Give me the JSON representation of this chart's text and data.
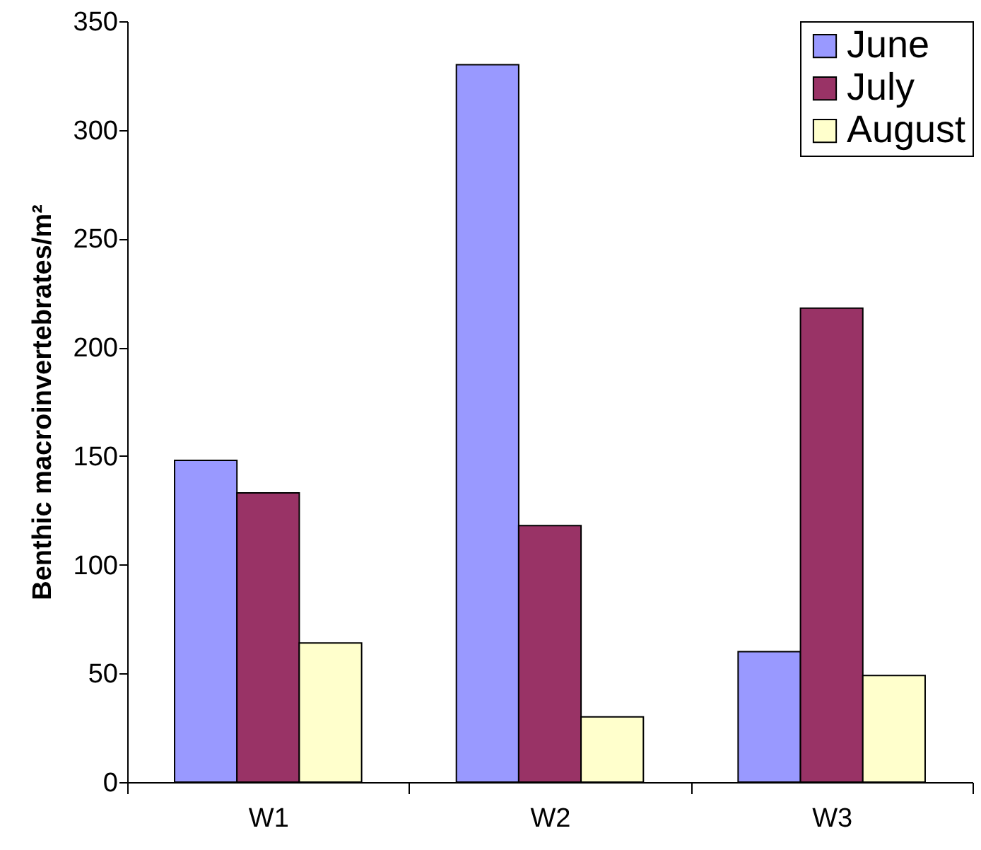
{
  "chart_data": {
    "type": "bar",
    "ylabel": "Benthic macroinvertebrates/m²",
    "categories": [
      "W1",
      "W2",
      "W3"
    ],
    "series": [
      {
        "name": "June",
        "color": "#9999ff",
        "values": [
          148,
          330,
          60
        ]
      },
      {
        "name": "July",
        "color": "#993366",
        "values": [
          133,
          118,
          218
        ]
      },
      {
        "name": "August",
        "color": "#ffffcc",
        "values": [
          64,
          30,
          49
        ]
      }
    ],
    "ylim": [
      0,
      350
    ],
    "yticks": [
      0,
      50,
      100,
      150,
      200,
      250,
      300,
      350
    ],
    "grid": false,
    "legend": "top right"
  }
}
